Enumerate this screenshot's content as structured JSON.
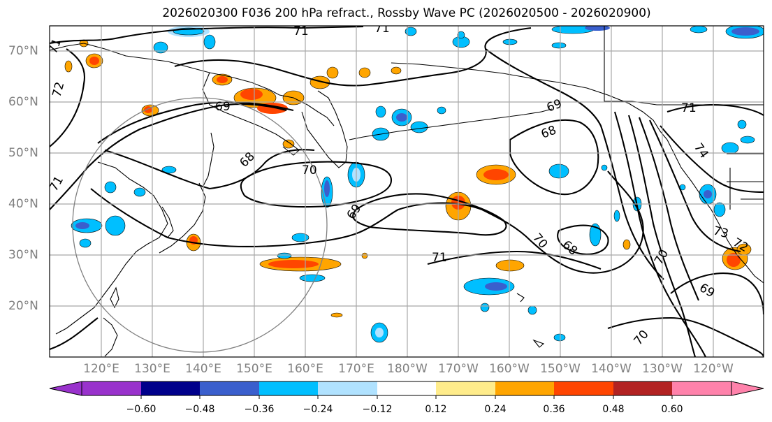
{
  "title": "2026020300 F036 200 hPa refract., Rossby Wave PC (2026020500 - 2026020900)",
  "lat_labels": [
    "70°N",
    "60°N",
    "50°N",
    "40°N",
    "30°N",
    "20°N"
  ],
  "lon_labels": [
    "120°E",
    "130°E",
    "140°E",
    "150°E",
    "160°E",
    "170°E",
    "180°W",
    "170°W",
    "160°W",
    "150°W",
    "140°W",
    "130°W",
    "120°W"
  ],
  "contour_labels": [
    "71",
    "71",
    "71",
    "72",
    "69",
    "68",
    "70",
    "69",
    "69",
    "68",
    "71",
    "70",
    "68",
    "74",
    "73",
    "72",
    "70",
    "69",
    "70",
    "71",
    "71"
  ],
  "colorbar": {
    "ticks": [
      "−0.60",
      "−0.48",
      "−0.36",
      "−0.24",
      "−0.12",
      "0.12",
      "0.24",
      "0.36",
      "0.48",
      "0.60"
    ],
    "colors": [
      "#9932cc",
      "#00008b",
      "#3a5fcd",
      "#00bfff",
      "#b0e2ff",
      "#ffffff",
      "#ffec8b",
      "#ffa500",
      "#ff4500",
      "#b22222",
      "#ff82ab"
    ]
  }
}
